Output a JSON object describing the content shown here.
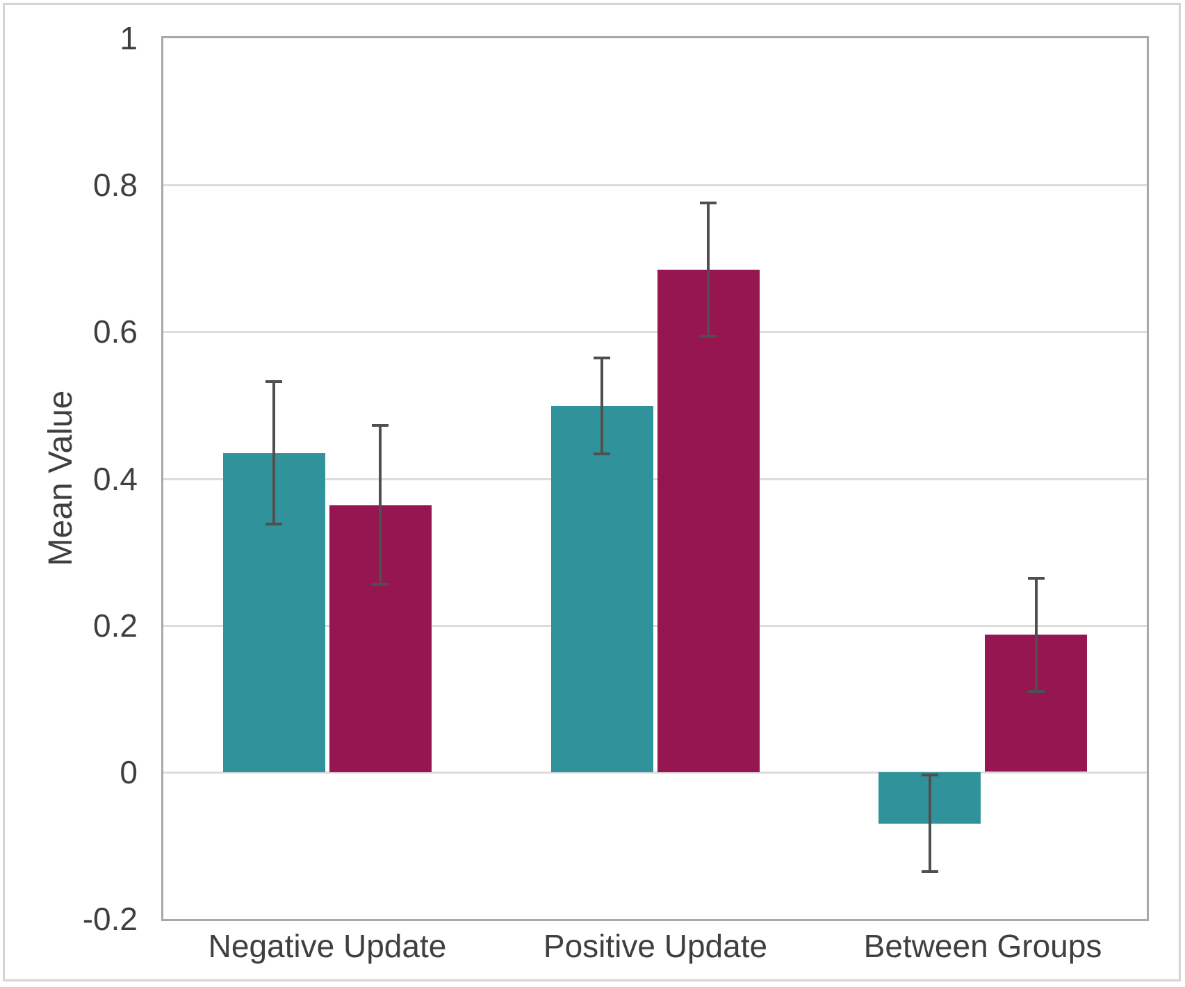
{
  "figure": {
    "background": "#ffffff",
    "frame_border_color": "#d4d4d4"
  },
  "chart_data": {
    "type": "bar",
    "ylabel": "Mean Value",
    "xlabel": "",
    "categories": [
      "Negative Update",
      "Positive Update",
      "Between Groups"
    ],
    "series": [
      {
        "name": "teal",
        "color": "#30929A",
        "values": [
          0.435,
          0.499,
          -0.07
        ],
        "errors": [
          0.097,
          0.065,
          0.066
        ]
      },
      {
        "name": "crimson",
        "color": "#961652",
        "values": [
          0.364,
          0.685,
          0.187
        ],
        "errors": [
          0.108,
          0.091,
          0.077
        ]
      }
    ],
    "ylim": [
      -0.2,
      1.0
    ],
    "yticks": [
      {
        "value": 1,
        "label": "1"
      },
      {
        "value": 0.8,
        "label": "0.8"
      },
      {
        "value": 0.6,
        "label": "0.6"
      },
      {
        "value": 0.4,
        "label": "0.4"
      },
      {
        "value": 0.2,
        "label": "0.2"
      },
      {
        "value": 0,
        "label": "0"
      },
      {
        "value": -0.2,
        "label": "-0.2"
      }
    ],
    "grid": true,
    "legend": "none",
    "colors": {
      "axis": "#a8a8a8",
      "gridline": "#dcdcdc",
      "error_bar": "#4f4f4f",
      "text": "#3f3f3f"
    }
  }
}
